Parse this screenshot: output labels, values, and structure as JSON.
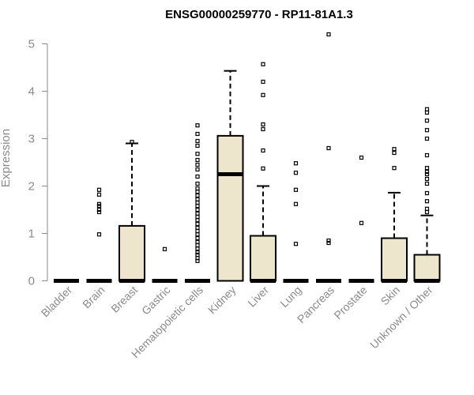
{
  "chart_data": {
    "type": "boxplot",
    "title": "ENSG00000259770 - RP11-81A1.3",
    "xlabel": "",
    "ylabel": "Expression",
    "ylim": [
      0,
      5.2
    ],
    "yticks": [
      0,
      1,
      2,
      3,
      4,
      5
    ],
    "grid": false,
    "box_fill": "#ede6cc",
    "axis_color": "#8a8a8a",
    "categories": [
      "Bladder",
      "Brain",
      "Breast",
      "Gastric",
      "Hematopoietic cells",
      "Kidney",
      "Liver",
      "Lung",
      "Pancreas",
      "Prostate",
      "Skin",
      "Unknown / Other"
    ],
    "boxes": [
      {
        "q1": 0,
        "median": 0,
        "q3": 0,
        "whisker_low": 0,
        "whisker_high": 0,
        "outliers": []
      },
      {
        "q1": 0,
        "median": 0,
        "q3": 0,
        "whisker_low": 0,
        "whisker_high": 0,
        "outliers": [
          0.98,
          1.45,
          1.5,
          1.58,
          1.62,
          1.82,
          1.92
        ]
      },
      {
        "q1": 0,
        "median": 0,
        "q3": 1.16,
        "whisker_low": 0,
        "whisker_high": 2.9,
        "outliers": [
          2.93
        ]
      },
      {
        "q1": 0,
        "median": 0,
        "q3": 0,
        "whisker_low": 0,
        "whisker_high": 0,
        "outliers": [
          0.67
        ]
      },
      {
        "q1": 0,
        "median": 0,
        "q3": 0,
        "whisker_low": 0,
        "whisker_high": 0,
        "outliers": [
          0.42,
          0.48,
          0.55,
          0.6,
          0.68,
          0.75,
          0.82,
          0.9,
          0.98,
          1.05,
          1.12,
          1.2,
          1.28,
          1.35,
          1.42,
          1.5,
          1.58,
          1.65,
          1.72,
          1.8,
          1.88,
          1.95,
          2.05,
          2.2,
          2.35,
          2.45,
          2.55,
          2.68,
          2.85,
          2.95,
          3.1,
          3.28
        ]
      },
      {
        "q1": 0,
        "median": 2.25,
        "q3": 3.06,
        "whisker_low": 0,
        "whisker_high": 4.43,
        "outliers": []
      },
      {
        "q1": 0,
        "median": 0,
        "q3": 0.95,
        "whisker_low": 0,
        "whisker_high": 2.0,
        "outliers": [
          2.37,
          2.75,
          3.2,
          3.3,
          3.92,
          4.2,
          4.57
        ]
      },
      {
        "q1": 0,
        "median": 0,
        "q3": 0,
        "whisker_low": 0,
        "whisker_high": 0,
        "outliers": [
          0.78,
          1.62,
          1.92,
          2.28,
          2.48
        ]
      },
      {
        "q1": 0,
        "median": 0,
        "q3": 0,
        "whisker_low": 0,
        "whisker_high": 0,
        "outliers": [
          0.8,
          0.85,
          2.8,
          5.2
        ]
      },
      {
        "q1": 0,
        "median": 0,
        "q3": 0,
        "whisker_low": 0,
        "whisker_high": 0,
        "outliers": [
          1.22,
          2.6
        ]
      },
      {
        "q1": 0,
        "median": 0,
        "q3": 0.9,
        "whisker_low": 0,
        "whisker_high": 1.86,
        "outliers": [
          2.38,
          2.7,
          2.78
        ]
      },
      {
        "q1": 0,
        "median": 0,
        "q3": 0.55,
        "whisker_low": 0,
        "whisker_high": 1.38,
        "outliers": [
          1.45,
          1.52,
          1.68,
          1.85,
          2.05,
          2.15,
          2.25,
          2.3,
          2.38,
          2.65,
          3.0,
          3.18,
          3.38,
          3.55,
          3.62
        ]
      }
    ]
  }
}
